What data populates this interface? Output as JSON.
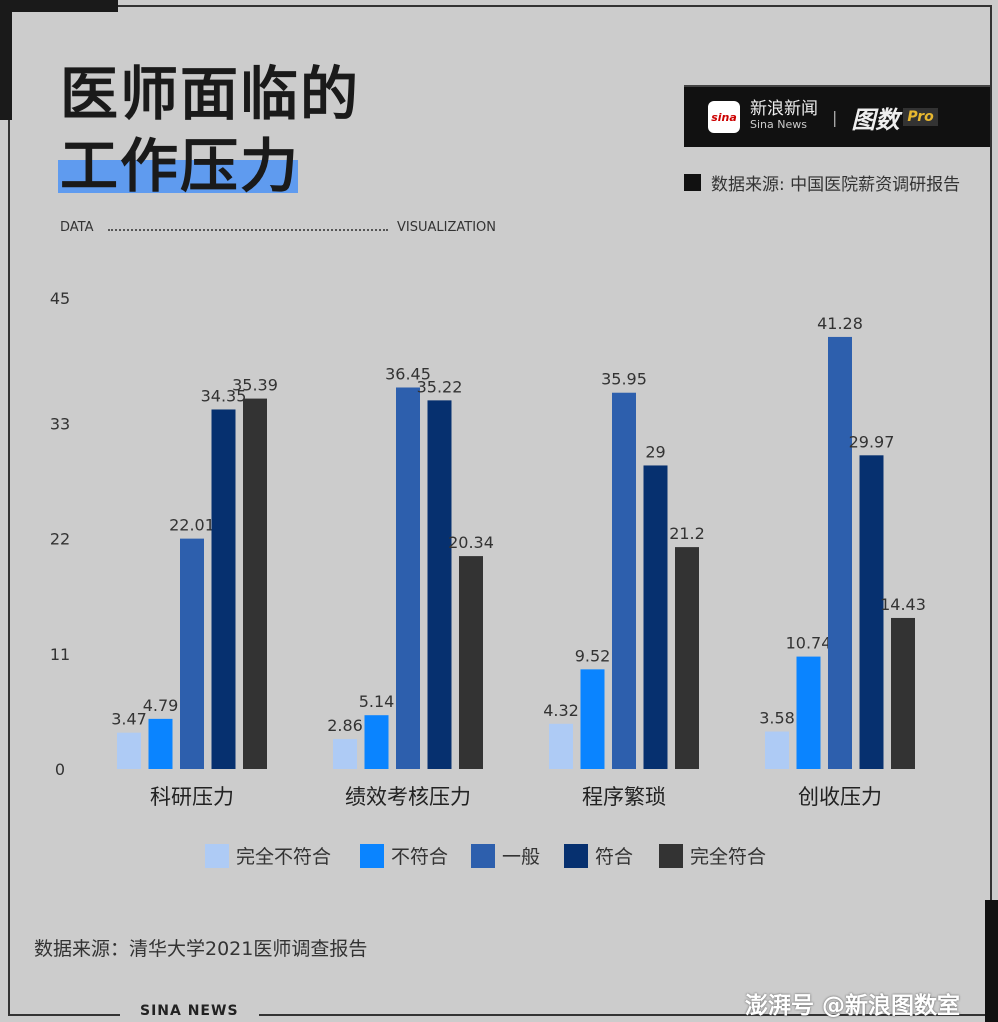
{
  "header": {
    "title_line1": "医师面临的",
    "title_line2": "工作压力",
    "brand_cn": "新浪新闻",
    "brand_en": "Sina News",
    "brand_logo": "sina",
    "brand_product": "图数",
    "brand_pro": "Pro",
    "source_top": "数据来源: 中国医院薪资调研报告",
    "data_label": "DATA",
    "viz_label": "VISUALIZATION"
  },
  "footer": {
    "source": "数据来源：清华大学2021医师调查报告",
    "sina_news": "SINA  NEWS",
    "watermark": "澎湃号 @新浪图数室"
  },
  "chart_data": {
    "type": "bar",
    "categories": [
      "科研压力",
      "绩效考核压力",
      "程序繁琐",
      "创收压力"
    ],
    "series": [
      {
        "name": "完全不符合",
        "color": "#aecbf5",
        "values": [
          3.47,
          2.86,
          4.32,
          3.58
        ]
      },
      {
        "name": "不符合",
        "color": "#0a84ff",
        "values": [
          4.79,
          5.14,
          9.52,
          10.74
        ]
      },
      {
        "name": "一般",
        "color": "#2d5fad",
        "values": [
          22.01,
          36.45,
          35.95,
          41.28
        ]
      },
      {
        "name": "符合",
        "color": "#06306f",
        "values": [
          34.35,
          35.22,
          29,
          29.97
        ]
      },
      {
        "name": "完全符合",
        "color": "#333333",
        "values": [
          35.39,
          20.34,
          21.2,
          14.43
        ]
      }
    ],
    "yticks": [
      0,
      11,
      22,
      33,
      45
    ],
    "ylim": [
      0,
      45
    ],
    "legend": "bottom",
    "grid": false
  }
}
